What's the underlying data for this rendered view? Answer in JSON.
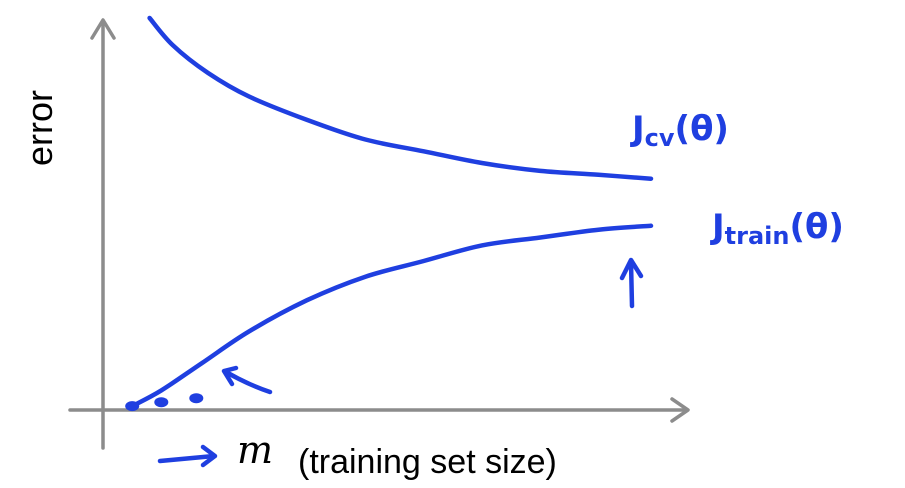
{
  "chart_data": {
    "type": "line",
    "xlabel": "(training set size)",
    "xlabel_variable": "m",
    "ylabel": "error",
    "grid": false,
    "xlim": [
      0,
      1
    ],
    "ylim": [
      0,
      1
    ],
    "series": [
      {
        "name_parts": [
          "J",
          "cv",
          "(θ)"
        ],
        "color": "#1f3fe0",
        "x": [
          0.08,
          0.12,
          0.18,
          0.25,
          0.35,
          0.45,
          0.55,
          0.65,
          0.75,
          0.85,
          0.94
        ],
        "y": [
          1.0,
          0.93,
          0.86,
          0.8,
          0.74,
          0.69,
          0.66,
          0.63,
          0.61,
          0.6,
          0.59
        ]
      },
      {
        "name_parts": [
          "J",
          "train",
          "(θ)"
        ],
        "color": "#1f3fe0",
        "x": [
          0.05,
          0.1,
          0.17,
          0.25,
          0.35,
          0.45,
          0.55,
          0.65,
          0.75,
          0.85,
          0.94
        ],
        "y": [
          0.01,
          0.05,
          0.12,
          0.2,
          0.28,
          0.34,
          0.38,
          0.42,
          0.44,
          0.46,
          0.47
        ]
      }
    ],
    "points": [
      {
        "x": 0.05,
        "y": 0.01
      },
      {
        "x": 0.1,
        "y": 0.02
      },
      {
        "x": 0.16,
        "y": 0.03
      }
    ]
  }
}
